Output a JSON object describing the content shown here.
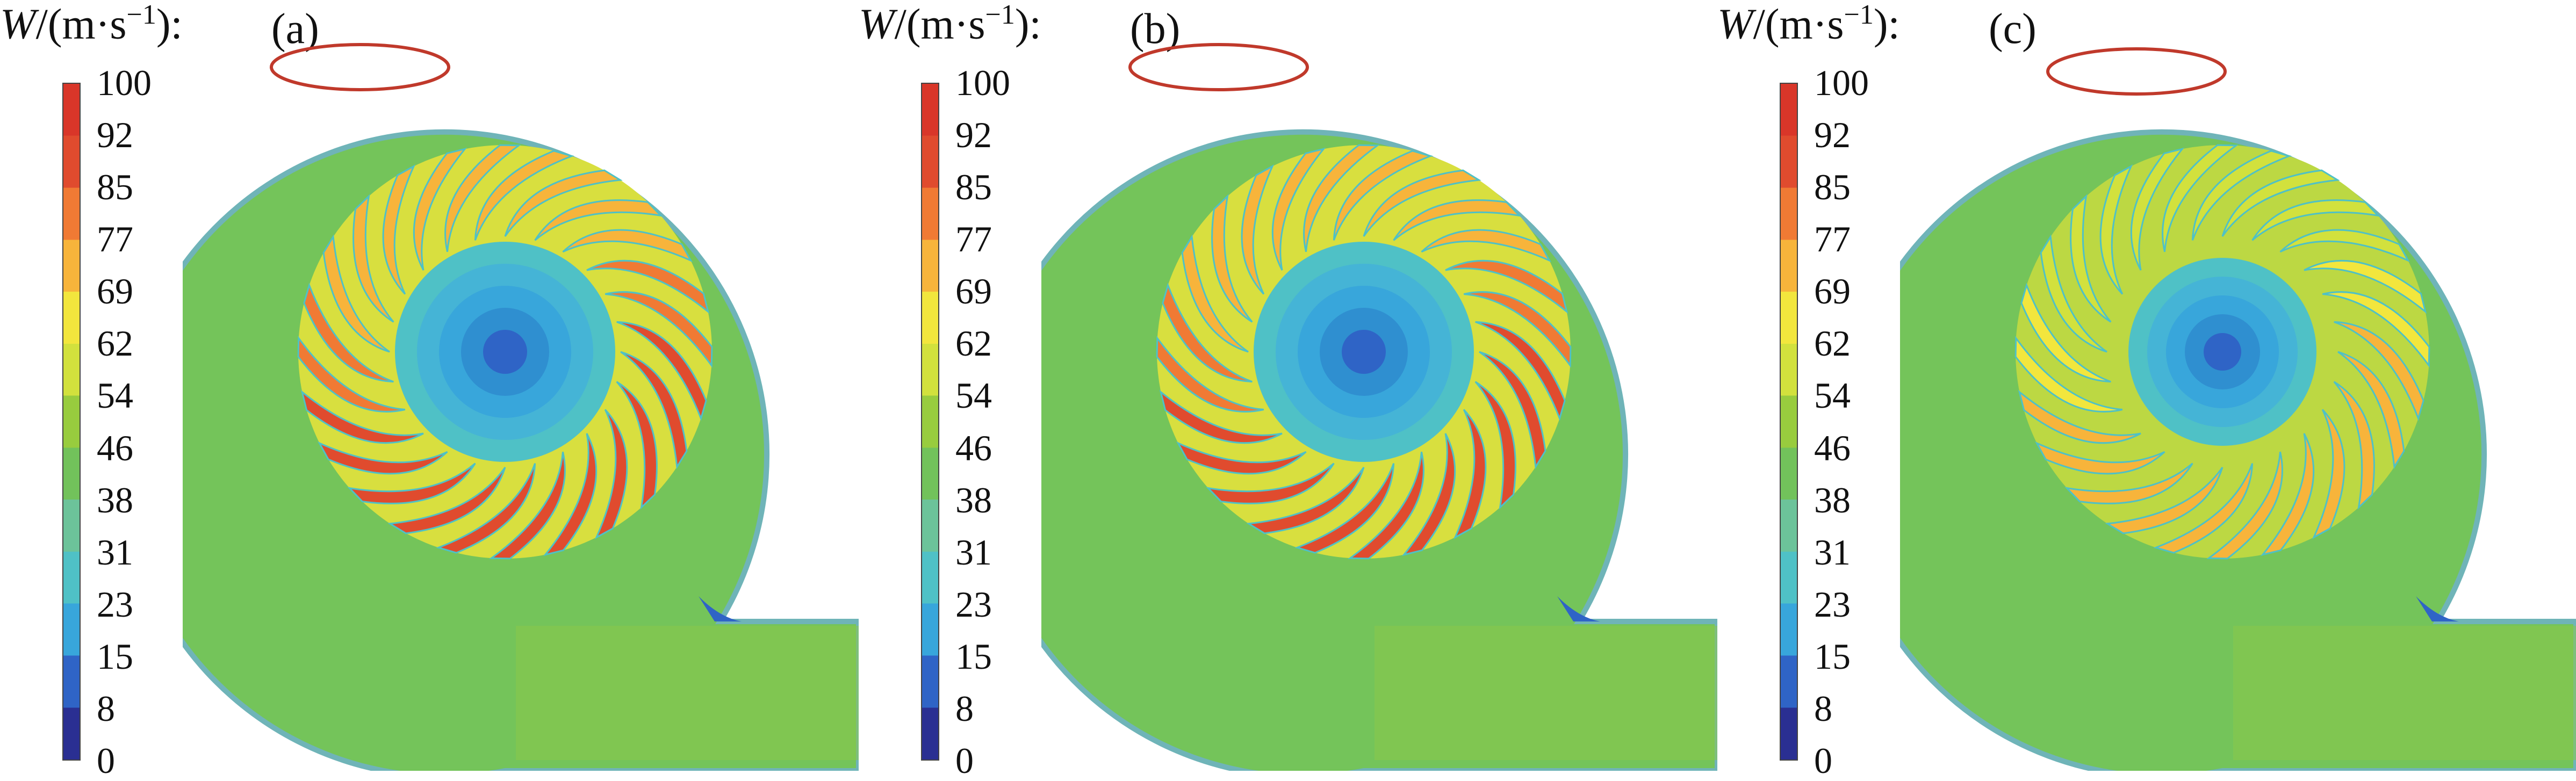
{
  "legend": {
    "variable": "W",
    "unit_text": "/(m·s",
    "exponent": "−1",
    "closing": "):",
    "ticks": [
      "100",
      "92",
      "85",
      "77",
      "69",
      "62",
      "54",
      "46",
      "38",
      "31",
      "23",
      "15",
      "8",
      "0"
    ],
    "colors": [
      "#2a2f92",
      "#2f64c6",
      "#38a6db",
      "#4fc1c6",
      "#6cc39a",
      "#72c25b",
      "#98cc3e",
      "#d2e13d",
      "#f2e63d",
      "#f7b43b",
      "#f07a34",
      "#e04b2e",
      "#d93629"
    ]
  },
  "panels": [
    {
      "letter": "(a)",
      "intensity": 1.0
    },
    {
      "letter": "(b)",
      "intensity": 1.0
    },
    {
      "letter": "(c)",
      "intensity": 0.72
    }
  ]
}
